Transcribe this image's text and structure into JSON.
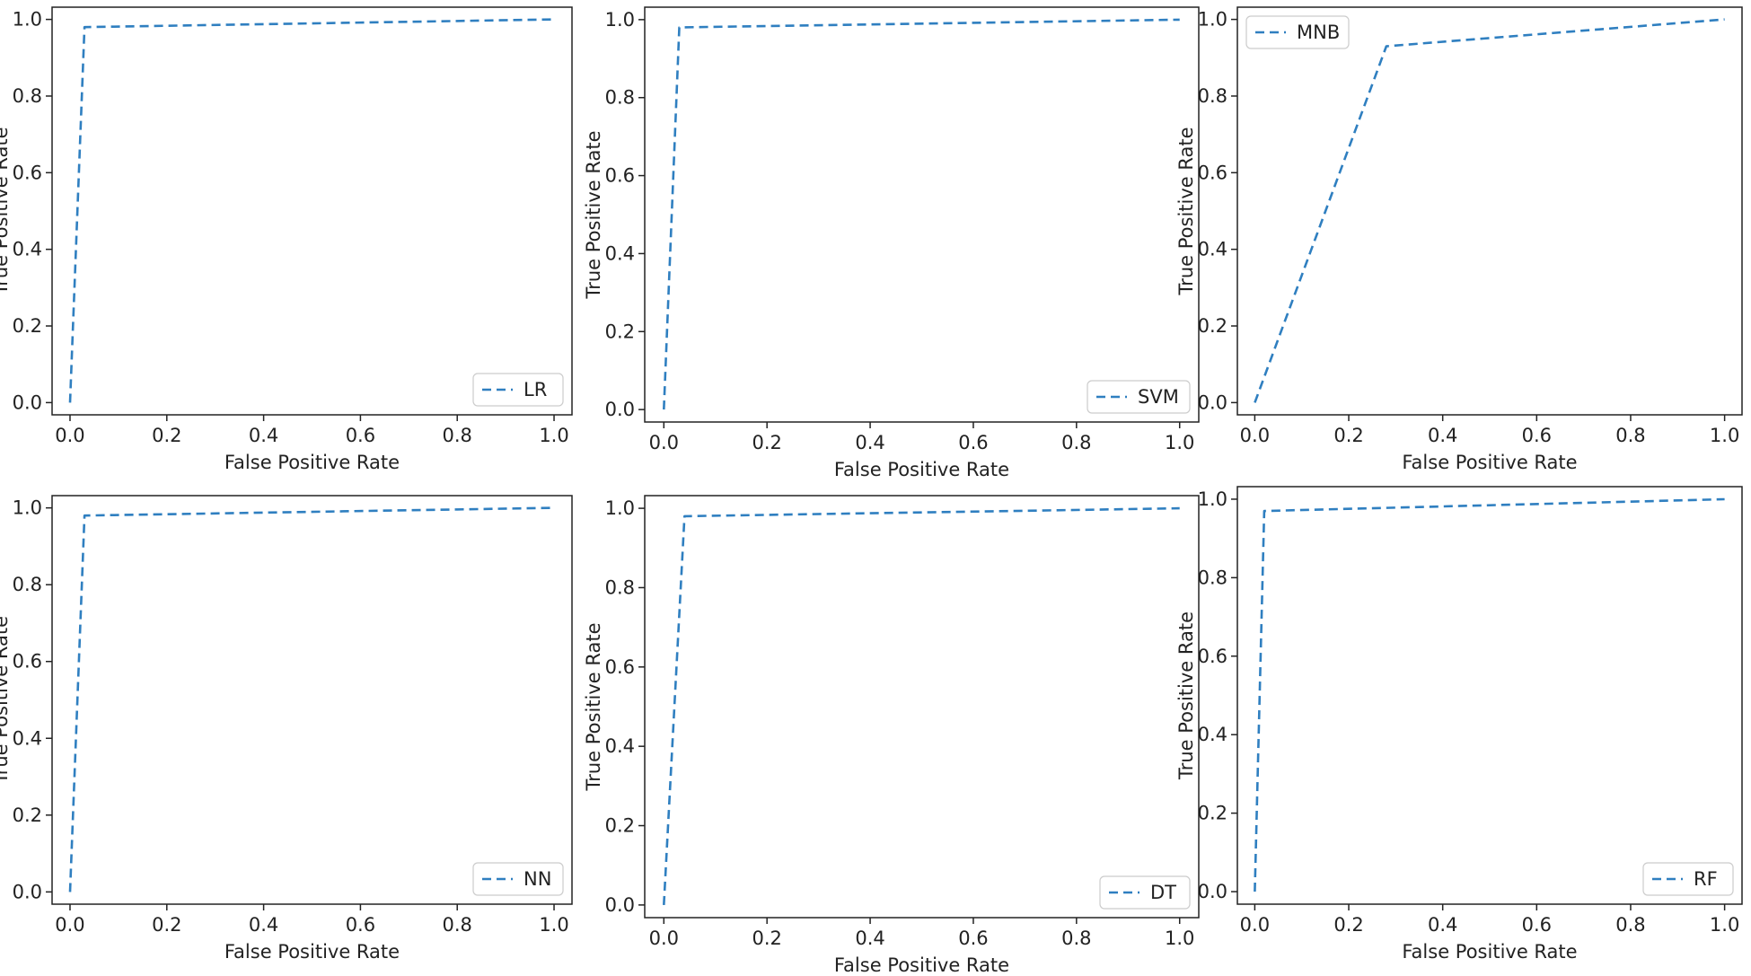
{
  "figure": {
    "line_color": "#2f7fc0",
    "frame_color": "#222222",
    "legend_border_color": "#cccccc"
  },
  "chart_data": [
    {
      "type": "line",
      "xlabel": "False Positive Rate",
      "ylabel": "True Positive Rate",
      "xlim": [
        0,
        1
      ],
      "ylim": [
        0,
        1
      ],
      "xticks": [
        "0.0",
        "0.2",
        "0.4",
        "0.6",
        "0.8",
        "1.0"
      ],
      "yticks": [
        "0.0",
        "0.2",
        "0.4",
        "0.6",
        "0.8",
        "1.0"
      ],
      "grid": false,
      "legend_position": "lower-right",
      "series": [
        {
          "name": "LR",
          "line_style": "dashed",
          "x": [
            0.0,
            0.03,
            1.0
          ],
          "y": [
            0.0,
            0.98,
            1.0
          ]
        }
      ]
    },
    {
      "type": "line",
      "xlabel": "False Positive Rate",
      "ylabel": "True Positive Rate",
      "xlim": [
        0,
        1
      ],
      "ylim": [
        0,
        1
      ],
      "xticks": [
        "0.0",
        "0.2",
        "0.4",
        "0.6",
        "0.8",
        "1.0"
      ],
      "yticks": [
        "0.0",
        "0.2",
        "0.4",
        "0.6",
        "0.8",
        "1.0"
      ],
      "grid": false,
      "legend_position": "lower-right",
      "series": [
        {
          "name": "SVM",
          "line_style": "dashed",
          "x": [
            0.0,
            0.03,
            1.0
          ],
          "y": [
            0.0,
            0.98,
            1.0
          ]
        }
      ]
    },
    {
      "type": "line",
      "xlabel": "False Positive Rate",
      "ylabel": "True Positive Rate",
      "xlim": [
        0,
        1
      ],
      "ylim": [
        0,
        1
      ],
      "xticks": [
        "0.0",
        "0.2",
        "0.4",
        "0.6",
        "0.8",
        "1.0"
      ],
      "yticks": [
        "0.0",
        "0.2",
        "0.4",
        "0.6",
        "0.8",
        "1.0"
      ],
      "grid": false,
      "legend_position": "upper-left",
      "series": [
        {
          "name": "MNB",
          "line_style": "dashed",
          "x": [
            0.0,
            0.28,
            1.0
          ],
          "y": [
            0.0,
            0.93,
            1.0
          ]
        }
      ]
    },
    {
      "type": "line",
      "xlabel": "False Positive Rate",
      "ylabel": "True Positive Rate",
      "xlim": [
        0,
        1
      ],
      "ylim": [
        0,
        1
      ],
      "xticks": [
        "0.0",
        "0.2",
        "0.4",
        "0.6",
        "0.8",
        "1.0"
      ],
      "yticks": [
        "0.0",
        "0.2",
        "0.4",
        "0.6",
        "0.8",
        "1.0"
      ],
      "grid": false,
      "legend_position": "lower-right",
      "series": [
        {
          "name": "NN",
          "line_style": "dashed",
          "x": [
            0.0,
            0.03,
            1.0
          ],
          "y": [
            0.0,
            0.98,
            1.0
          ]
        }
      ]
    },
    {
      "type": "line",
      "xlabel": "False Positive Rate",
      "ylabel": "True Positive Rate",
      "xlim": [
        0,
        1
      ],
      "ylim": [
        0,
        1
      ],
      "xticks": [
        "0.0",
        "0.2",
        "0.4",
        "0.6",
        "0.8",
        "1.0"
      ],
      "yticks": [
        "0.0",
        "0.2",
        "0.4",
        "0.6",
        "0.8",
        "1.0"
      ],
      "grid": false,
      "legend_position": "lower-right",
      "series": [
        {
          "name": "DT",
          "line_style": "dashed",
          "x": [
            0.0,
            0.04,
            1.0
          ],
          "y": [
            0.0,
            0.98,
            1.0
          ]
        }
      ]
    },
    {
      "type": "line",
      "xlabel": "False Positive Rate",
      "ylabel": "True Positive Rate",
      "xlim": [
        0,
        1
      ],
      "ylim": [
        0,
        1
      ],
      "xticks": [
        "0.0",
        "0.2",
        "0.4",
        "0.6",
        "0.8",
        "1.0"
      ],
      "yticks": [
        "0.0",
        "0.2",
        "0.4",
        "0.6",
        "0.8",
        "1.0"
      ],
      "grid": false,
      "legend_position": "lower-right",
      "series": [
        {
          "name": "RF",
          "line_style": "dashed",
          "x": [
            0.0,
            0.02,
            1.0
          ],
          "y": [
            0.0,
            0.97,
            1.0
          ]
        }
      ]
    }
  ]
}
